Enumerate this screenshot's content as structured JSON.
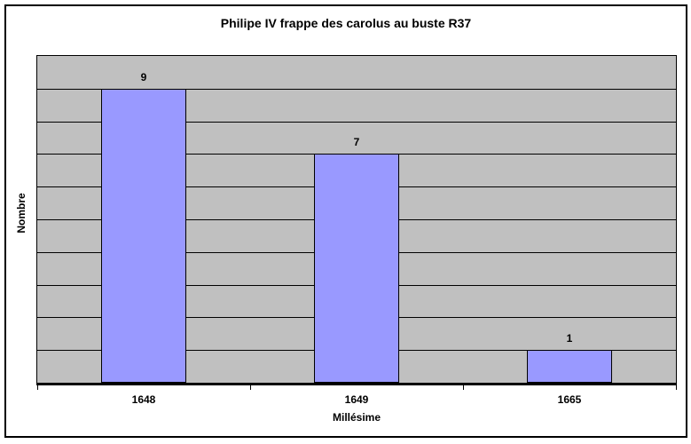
{
  "chart_data": {
    "type": "bar",
    "title": "Philipe IV frappe des carolus au buste R37",
    "xlabel": "Millésime",
    "ylabel": "Nombre",
    "categories": [
      "1648",
      "1649",
      "1665"
    ],
    "values": [
      9,
      7,
      1
    ],
    "data_labels": [
      "9",
      "7",
      "1"
    ],
    "ylim": [
      0,
      10
    ],
    "y_gridline_interval": 1,
    "y_tick_labels_shown": false,
    "grid": "horizontal black lines on gray plot",
    "legend_position": "none",
    "colors": {
      "bar_fill": "#9999FF",
      "bar_border": "#000000",
      "plot_background": "#C0C0C0",
      "chart_background": "#FFFFFF",
      "gridline": "#000000",
      "axis_line": "#000000",
      "text": "#000000",
      "chart_border": "#000000"
    }
  }
}
